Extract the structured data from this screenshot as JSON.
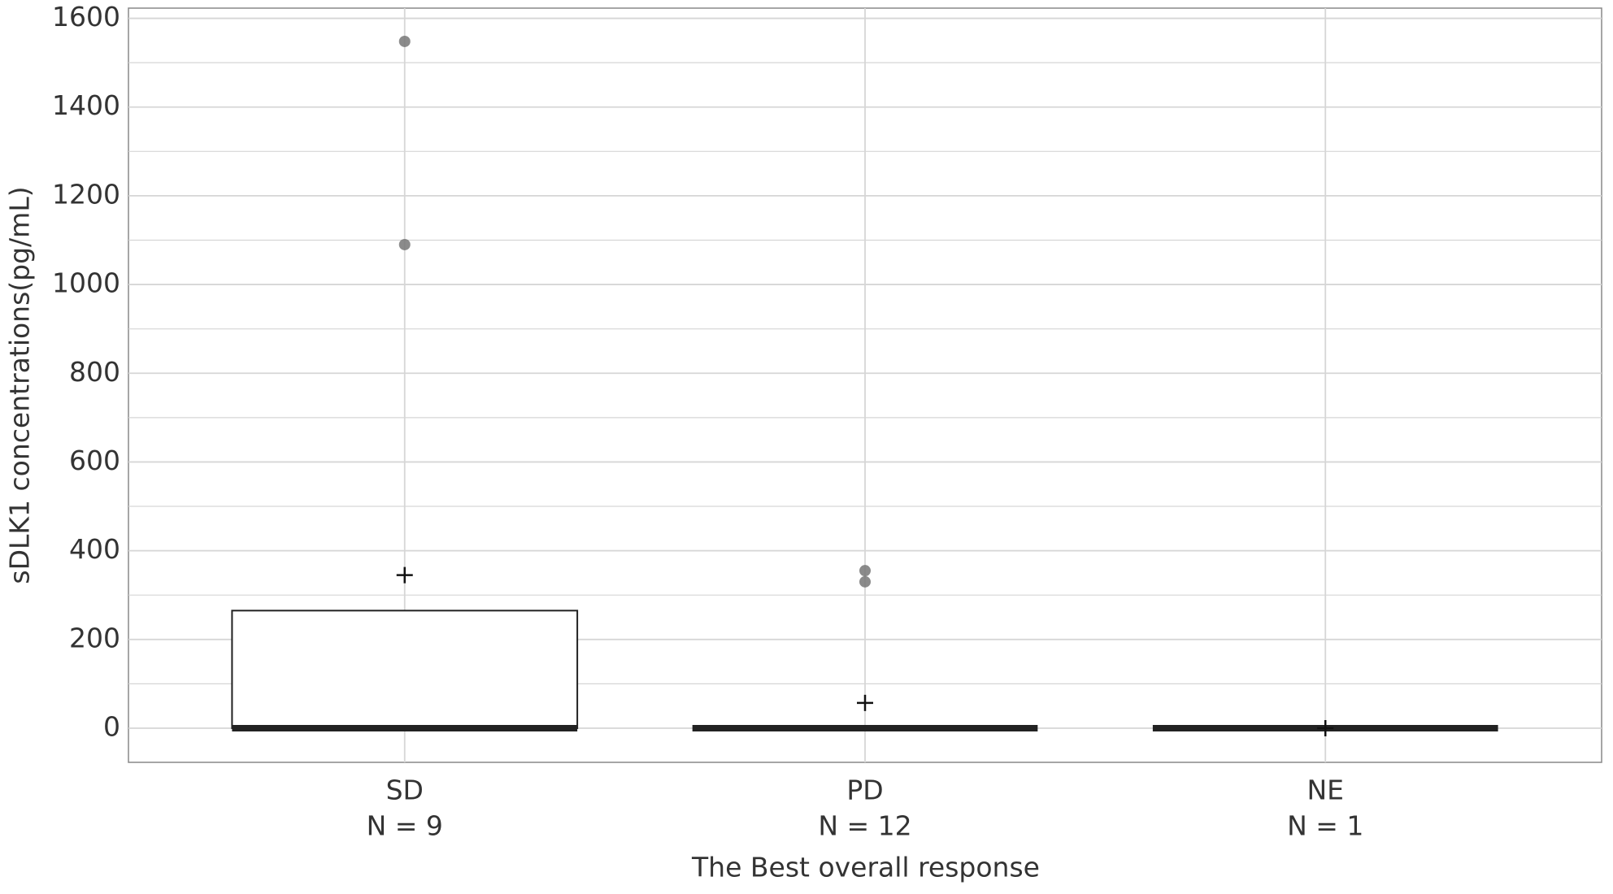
{
  "chart_data": {
    "type": "box",
    "categories": [
      "SD",
      "PD",
      "NE"
    ],
    "counts_labels": [
      "N = 9",
      "N = 12",
      "N = 1"
    ],
    "xlabel": "The Best overall response",
    "ylabel": "sDLK1 concentrations(pg/mL)",
    "ylim": [
      -77,
      1623
    ],
    "yticks": [
      0,
      200,
      400,
      600,
      800,
      1000,
      1200,
      1400,
      1600
    ],
    "grid": true,
    "minor_grid": true,
    "box_color": "#222222",
    "outlier_color": "#777777",
    "boxes": [
      {
        "whislo": 0,
        "q1": 0,
        "median": 0,
        "q3": 265,
        "whishi": 265,
        "mean": 345,
        "outliers": [
          1090,
          1548
        ]
      },
      {
        "whislo": 0,
        "q1": 0,
        "median": 0,
        "q3": 0,
        "whishi": 0,
        "mean": 57,
        "outliers": [
          330,
          355
        ]
      },
      {
        "whislo": 0,
        "q1": 0,
        "median": 0,
        "q3": 0,
        "whishi": 0,
        "mean": 0,
        "outliers": []
      }
    ]
  }
}
